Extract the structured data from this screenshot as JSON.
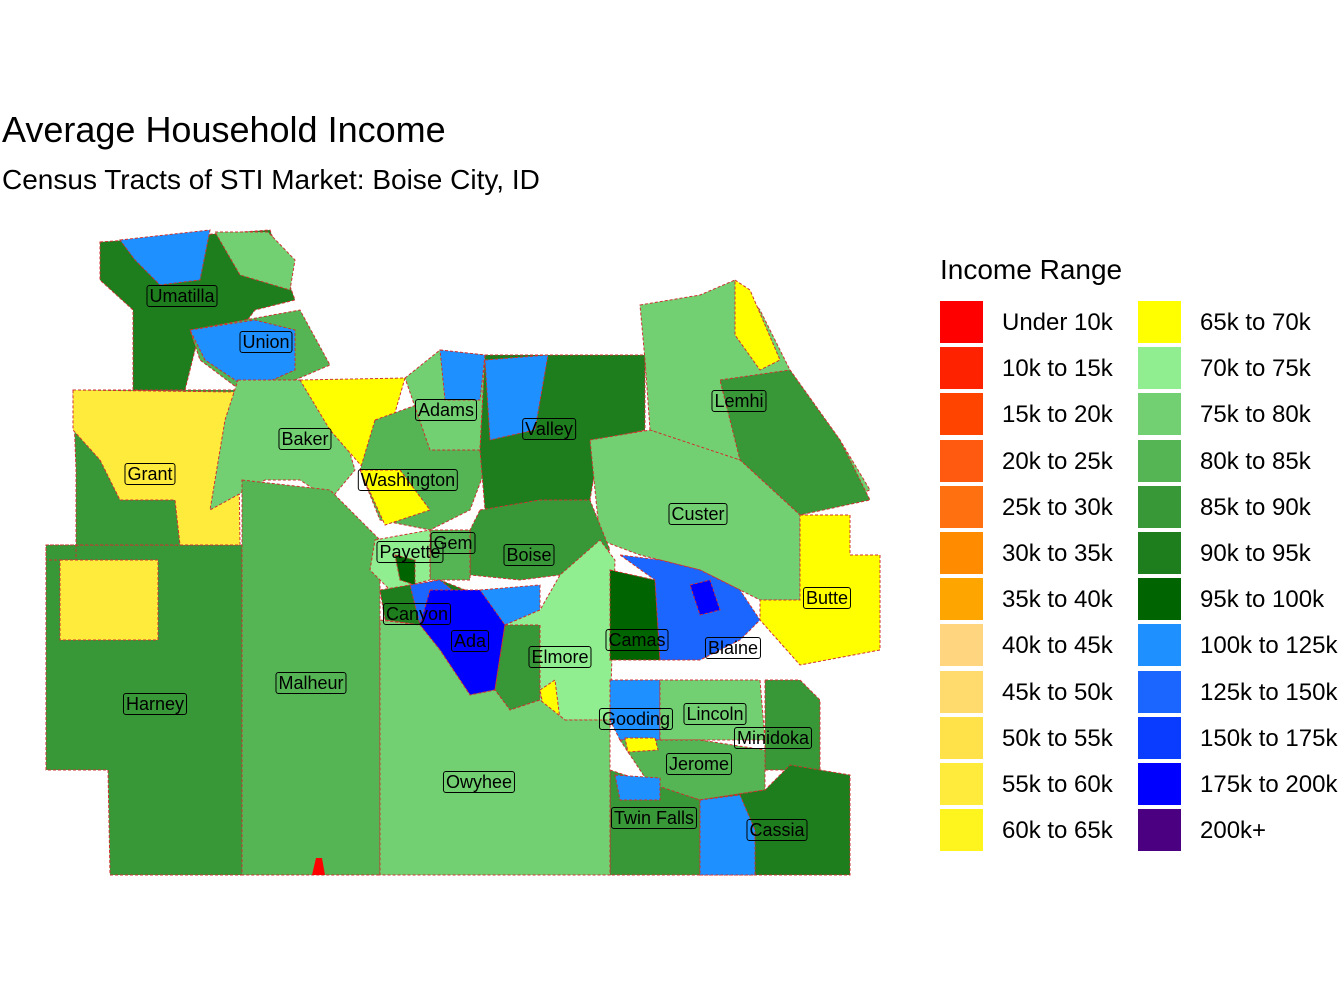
{
  "title": "Average Household Income",
  "subtitle": "Census Tracts of STI Market: Boise City, ID",
  "legend": {
    "title": "Income Range",
    "items": [
      {
        "label": "Under 10k",
        "color": "#ff0000"
      },
      {
        "label": "10k to 15k",
        "color": "#ff2200"
      },
      {
        "label": "15k to 20k",
        "color": "#ff4400"
      },
      {
        "label": "20k to 25k",
        "color": "#ff5a10"
      },
      {
        "label": "25k to 30k",
        "color": "#ff7010"
      },
      {
        "label": "30k to 35k",
        "color": "#ff8c00"
      },
      {
        "label": "35k to 40k",
        "color": "#ffa500"
      },
      {
        "label": "40k to 45k",
        "color": "#ffd580"
      },
      {
        "label": "45k to 50k",
        "color": "#ffdb6e"
      },
      {
        "label": "50k to 55k",
        "color": "#ffe24a"
      },
      {
        "label": "55k to 60k",
        "color": "#ffeb3b"
      },
      {
        "label": "60k to 65k",
        "color": "#fff51e"
      },
      {
        "label": "65k to 70k",
        "color": "#ffff00"
      },
      {
        "label": "70k to 75k",
        "color": "#90ee90"
      },
      {
        "label": "75k to 80k",
        "color": "#72d072"
      },
      {
        "label": "80k to 85k",
        "color": "#55b555"
      },
      {
        "label": "85k to 90k",
        "color": "#389838"
      },
      {
        "label": "90k to 95k",
        "color": "#1e7e1e"
      },
      {
        "label": "95k to 100k",
        "color": "#006400"
      },
      {
        "label": "100k to 125k",
        "color": "#1e90ff"
      },
      {
        "label": "125k to 150k",
        "color": "#1a66ff"
      },
      {
        "label": "150k to 175k",
        "color": "#0a3cff"
      },
      {
        "label": "175k to 200k",
        "color": "#0000ff"
      },
      {
        "label": "200k+",
        "color": "#4b0082"
      }
    ]
  },
  "counties": [
    {
      "name": "Umatilla"
    },
    {
      "name": "Union"
    },
    {
      "name": "Adams"
    },
    {
      "name": "Valley"
    },
    {
      "name": "Lemhi"
    },
    {
      "name": "Baker"
    },
    {
      "name": "Grant"
    },
    {
      "name": "Washington"
    },
    {
      "name": "Custer"
    },
    {
      "name": "Payette"
    },
    {
      "name": "Gem"
    },
    {
      "name": "Boise"
    },
    {
      "name": "Butte"
    },
    {
      "name": "Canyon"
    },
    {
      "name": "Ada"
    },
    {
      "name": "Camas"
    },
    {
      "name": "Blaine"
    },
    {
      "name": "Elmore"
    },
    {
      "name": "Malheur"
    },
    {
      "name": "Harney"
    },
    {
      "name": "Gooding"
    },
    {
      "name": "Lincoln"
    },
    {
      "name": "Minidoka"
    },
    {
      "name": "Jerome"
    },
    {
      "name": "Owyhee"
    },
    {
      "name": "Twin Falls"
    },
    {
      "name": "Cassia"
    }
  ]
}
